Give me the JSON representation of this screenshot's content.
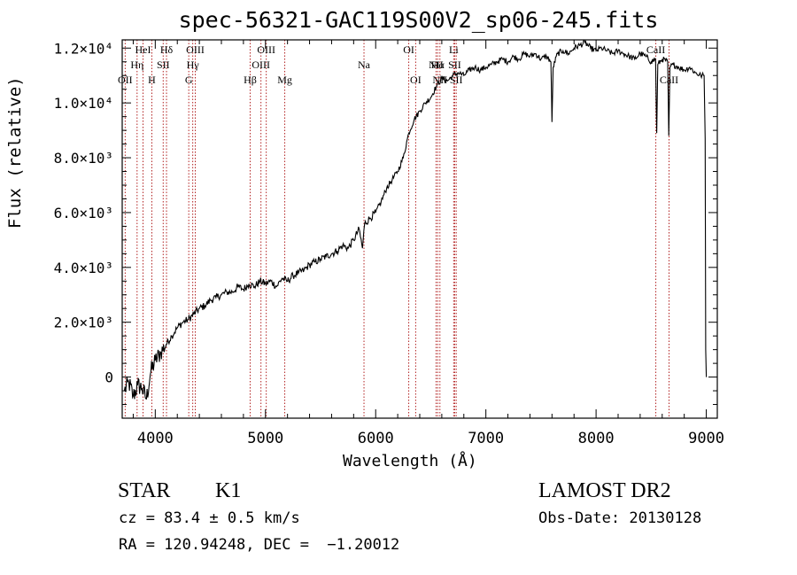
{
  "header": {
    "title": "spec-56321-GAC119S00V2_sp06-245.fits"
  },
  "info": {
    "class": "STAR",
    "subclass": "K1",
    "survey": "LAMOST DR2",
    "cz": "cz = 83.4 ± 0.5 km/s",
    "obsdate": "Obs-Date: 20130128",
    "radec": "RA = 120.94248, DEC =  −1.20012"
  },
  "colors": {
    "line": "#000000",
    "marker": "#b22222",
    "axis": "#000000"
  },
  "chart_data": {
    "type": "line",
    "title": "spec-56321-GAC119S00V2_sp06-245.fits",
    "xlabel": "Wavelength (Å)",
    "ylabel": "Flux (relative)",
    "xlim": [
      3700,
      9100
    ],
    "ylim": [
      -1500,
      12300
    ],
    "xticks": [
      4000,
      5000,
      6000,
      7000,
      8000,
      9000
    ],
    "yticks": [
      {
        "v": 0,
        "label": "0"
      },
      {
        "v": 2000,
        "label": "2.0×10³"
      },
      {
        "v": 4000,
        "label": "4.0×10³"
      },
      {
        "v": 6000,
        "label": "6.0×10³"
      },
      {
        "v": 8000,
        "label": "8.0×10³"
      },
      {
        "v": 10000,
        "label": "1.0×10⁴"
      },
      {
        "v": 12000,
        "label": "1.2×10⁴"
      }
    ],
    "grid": false,
    "series": [
      {
        "x": [
          3720,
          3760,
          3800,
          3840,
          3880,
          3920,
          3960,
          4000,
          4050,
          4100,
          4150,
          4200,
          4250,
          4300,
          4350,
          4400,
          4450,
          4500,
          4550,
          4600,
          4650,
          4700,
          4750,
          4800,
          4850,
          4900,
          4950,
          5000,
          5050,
          5100,
          5150,
          5200,
          5250,
          5300,
          5350,
          5400,
          5450,
          5500,
          5550,
          5600,
          5650,
          5700,
          5750,
          5800,
          5850,
          5880,
          5900,
          5950,
          6000,
          6050,
          6100,
          6150,
          6200,
          6250,
          6300,
          6350,
          6400,
          6450,
          6500,
          6550,
          6600,
          6650,
          6700,
          6750,
          6800,
          6850,
          6900,
          6950,
          7000,
          7050,
          7100,
          7150,
          7200,
          7250,
          7300,
          7350,
          7400,
          7450,
          7500,
          7550,
          7590,
          7600,
          7610,
          7650,
          7700,
          7750,
          7800,
          7850,
          7900,
          7950,
          8000,
          8050,
          8100,
          8150,
          8200,
          8250,
          8300,
          8350,
          8400,
          8450,
          8500,
          8540,
          8550,
          8560,
          8600,
          8650,
          8660,
          8670,
          8700,
          8750,
          8800,
          8850,
          8900,
          8950,
          8980,
          8990,
          8995,
          9000
        ],
        "y": [
          -500,
          -200,
          -700,
          -300,
          -400,
          -800,
          200,
          600,
          900,
          1200,
          1500,
          1800,
          2000,
          2100,
          2300,
          2500,
          2600,
          2800,
          2900,
          3000,
          3100,
          3100,
          3300,
          3200,
          3400,
          3300,
          3500,
          3400,
          3500,
          3300,
          3600,
          3500,
          3700,
          3800,
          3900,
          4100,
          4200,
          4300,
          4400,
          4500,
          4600,
          4800,
          4700,
          5000,
          5400,
          4700,
          5600,
          5800,
          6000,
          6400,
          6900,
          7200,
          7500,
          8000,
          8900,
          9400,
          9700,
          10000,
          10200,
          10600,
          10900,
          10800,
          11000,
          11100,
          11000,
          11200,
          11300,
          11200,
          11300,
          11400,
          11500,
          11600,
          11500,
          11700,
          11600,
          11800,
          11700,
          11800,
          11600,
          11700,
          11500,
          9300,
          11300,
          11800,
          11900,
          11800,
          12000,
          12100,
          12200,
          12000,
          11900,
          12000,
          11900,
          11800,
          11900,
          11800,
          11700,
          11600,
          11800,
          11700,
          11500,
          11600,
          8900,
          11400,
          11600,
          11500,
          8800,
          11300,
          11400,
          11300,
          11200,
          11300,
          11100,
          11000,
          11000,
          8700,
          1000,
          0
        ]
      }
    ],
    "lines": [
      {
        "label": "OII",
        "x": 3727,
        "row": 3
      },
      {
        "label": "Hη",
        "x": 3835,
        "row": 2
      },
      {
        "label": "HeI",
        "x": 3889,
        "row": 1
      },
      {
        "label": "H",
        "x": 3969,
        "row": 3
      },
      {
        "label": "SII",
        "x": 4072,
        "row": 2
      },
      {
        "label": "Hδ",
        "x": 4102,
        "row": 1
      },
      {
        "label": "G",
        "x": 4304,
        "row": 3
      },
      {
        "label": "Hγ",
        "x": 4340,
        "row": 2
      },
      {
        "label": "OIII",
        "x": 4363,
        "row": 1
      },
      {
        "label": "Hβ",
        "x": 4861,
        "row": 3
      },
      {
        "label": "OIII",
        "x": 4959,
        "row": 2
      },
      {
        "label": "OIII",
        "x": 5007,
        "row": 1
      },
      {
        "label": "Mg",
        "x": 5175,
        "row": 3
      },
      {
        "label": "Na",
        "x": 5894,
        "row": 2
      },
      {
        "label": "OI",
        "x": 6300,
        "row": 1
      },
      {
        "label": "OI",
        "x": 6363,
        "row": 3
      },
      {
        "label": "NII",
        "x": 6548,
        "row": 2
      },
      {
        "label": "Hα",
        "x": 6563,
        "row": 2
      },
      {
        "label": "NII",
        "x": 6583,
        "row": 3
      },
      {
        "label": "Li",
        "x": 6708,
        "row": 1
      },
      {
        "label": "SII",
        "x": 6717,
        "row": 2
      },
      {
        "label": "SII",
        "x": 6731,
        "row": 3
      },
      {
        "label": "CaII",
        "x": 8542,
        "row": 1
      },
      {
        "label": "CaII",
        "x": 8662,
        "row": 3
      }
    ]
  }
}
